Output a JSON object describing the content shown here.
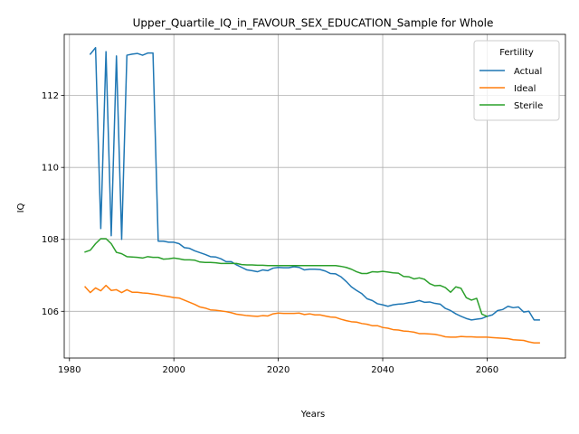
{
  "chart_data": {
    "type": "line",
    "title": "Upper_Quartile_IQ_in_FAVOUR_SEX_EDUCATION_Sample for Whole",
    "xlabel": "Years",
    "ylabel": "IQ",
    "xlim": [
      1979,
      2075
    ],
    "ylim": [
      104.7,
      113.7
    ],
    "xticks": [
      1980,
      2000,
      2020,
      2040,
      2060
    ],
    "yticks": [
      106,
      108,
      110,
      112
    ],
    "grid": true,
    "legend": {
      "title": "Fertility",
      "placement": "top-right"
    },
    "series": [
      {
        "name": "Actual",
        "color": "#1f77b4",
        "points": [
          [
            1984,
            113.15
          ],
          [
            1985,
            113.33
          ],
          [
            1986,
            108.3
          ],
          [
            1987,
            113.22
          ],
          [
            1988,
            108.1
          ],
          [
            1989,
            113.1
          ],
          [
            1990,
            108.0
          ],
          [
            1991,
            113.12
          ],
          [
            1992,
            113.15
          ],
          [
            1993,
            113.17
          ],
          [
            1994,
            113.12
          ],
          [
            1995,
            113.18
          ],
          [
            1996,
            113.18
          ],
          [
            1997,
            107.95
          ],
          [
            1998,
            107.95
          ],
          [
            1999,
            107.92
          ],
          [
            2000,
            107.92
          ],
          [
            2001,
            107.88
          ],
          [
            2002,
            107.77
          ],
          [
            2003,
            107.75
          ],
          [
            2004,
            107.68
          ],
          [
            2005,
            107.63
          ],
          [
            2006,
            107.58
          ],
          [
            2007,
            107.52
          ],
          [
            2008,
            107.51
          ],
          [
            2009,
            107.46
          ],
          [
            2010,
            107.38
          ],
          [
            2011,
            107.38
          ],
          [
            2012,
            107.29
          ],
          [
            2013,
            107.22
          ],
          [
            2014,
            107.15
          ],
          [
            2015,
            107.13
          ],
          [
            2016,
            107.1
          ],
          [
            2017,
            107.15
          ],
          [
            2018,
            107.13
          ],
          [
            2019,
            107.2
          ],
          [
            2020,
            107.22
          ],
          [
            2021,
            107.21
          ],
          [
            2022,
            107.21
          ],
          [
            2023,
            107.24
          ],
          [
            2024,
            107.22
          ],
          [
            2025,
            107.15
          ],
          [
            2026,
            107.17
          ],
          [
            2027,
            107.17
          ],
          [
            2028,
            107.16
          ],
          [
            2029,
            107.12
          ],
          [
            2030,
            107.05
          ],
          [
            2031,
            107.04
          ],
          [
            2032,
            106.96
          ],
          [
            2033,
            106.83
          ],
          [
            2034,
            106.68
          ],
          [
            2035,
            106.58
          ],
          [
            2036,
            106.49
          ],
          [
            2037,
            106.35
          ],
          [
            2038,
            106.3
          ],
          [
            2039,
            106.21
          ],
          [
            2040,
            106.18
          ],
          [
            2041,
            106.14
          ],
          [
            2042,
            106.18
          ],
          [
            2043,
            106.2
          ],
          [
            2044,
            106.21
          ],
          [
            2045,
            106.24
          ],
          [
            2046,
            106.26
          ],
          [
            2047,
            106.3
          ],
          [
            2048,
            106.25
          ],
          [
            2049,
            106.26
          ],
          [
            2050,
            106.22
          ],
          [
            2051,
            106.2
          ],
          [
            2052,
            106.08
          ],
          [
            2053,
            106.02
          ],
          [
            2054,
            105.93
          ],
          [
            2055,
            105.86
          ],
          [
            2056,
            105.8
          ],
          [
            2057,
            105.76
          ],
          [
            2058,
            105.78
          ],
          [
            2059,
            105.8
          ],
          [
            2060,
            105.86
          ],
          [
            2061,
            105.9
          ],
          [
            2062,
            106.02
          ],
          [
            2063,
            106.05
          ],
          [
            2064,
            106.14
          ],
          [
            2065,
            106.1
          ],
          [
            2066,
            106.12
          ],
          [
            2067,
            105.98
          ],
          [
            2068,
            106.0
          ],
          [
            2069,
            105.76
          ],
          [
            2070,
            105.76
          ]
        ]
      },
      {
        "name": "Ideal",
        "color": "#ff7f0e",
        "points": [
          [
            1983,
            106.68
          ],
          [
            1984,
            106.52
          ],
          [
            1985,
            106.65
          ],
          [
            1986,
            106.57
          ],
          [
            1987,
            106.72
          ],
          [
            1988,
            106.58
          ],
          [
            1989,
            106.6
          ],
          [
            1990,
            106.52
          ],
          [
            1991,
            106.6
          ],
          [
            1992,
            106.53
          ],
          [
            1993,
            106.53
          ],
          [
            1994,
            106.51
          ],
          [
            1995,
            106.5
          ],
          [
            1996,
            106.48
          ],
          [
            1997,
            106.46
          ],
          [
            1998,
            106.43
          ],
          [
            1999,
            106.41
          ],
          [
            2000,
            106.38
          ],
          [
            2001,
            106.37
          ],
          [
            2002,
            106.31
          ],
          [
            2003,
            106.25
          ],
          [
            2004,
            106.19
          ],
          [
            2005,
            106.12
          ],
          [
            2006,
            106.09
          ],
          [
            2007,
            106.04
          ],
          [
            2008,
            106.03
          ],
          [
            2009,
            106.01
          ],
          [
            2010,
            105.99
          ],
          [
            2011,
            105.96
          ],
          [
            2012,
            105.92
          ],
          [
            2013,
            105.9
          ],
          [
            2014,
            105.88
          ],
          [
            2015,
            105.87
          ],
          [
            2016,
            105.86
          ],
          [
            2017,
            105.88
          ],
          [
            2018,
            105.87
          ],
          [
            2019,
            105.93
          ],
          [
            2020,
            105.95
          ],
          [
            2021,
            105.94
          ],
          [
            2022,
            105.94
          ],
          [
            2023,
            105.94
          ],
          [
            2024,
            105.95
          ],
          [
            2025,
            105.91
          ],
          [
            2026,
            105.93
          ],
          [
            2027,
            105.9
          ],
          [
            2028,
            105.9
          ],
          [
            2029,
            105.87
          ],
          [
            2030,
            105.84
          ],
          [
            2031,
            105.83
          ],
          [
            2032,
            105.78
          ],
          [
            2033,
            105.74
          ],
          [
            2034,
            105.71
          ],
          [
            2035,
            105.7
          ],
          [
            2036,
            105.66
          ],
          [
            2037,
            105.64
          ],
          [
            2038,
            105.6
          ],
          [
            2039,
            105.6
          ],
          [
            2040,
            105.55
          ],
          [
            2041,
            105.53
          ],
          [
            2042,
            105.49
          ],
          [
            2043,
            105.48
          ],
          [
            2044,
            105.45
          ],
          [
            2045,
            105.44
          ],
          [
            2046,
            105.42
          ],
          [
            2047,
            105.38
          ],
          [
            2048,
            105.38
          ],
          [
            2049,
            105.37
          ],
          [
            2050,
            105.36
          ],
          [
            2051,
            105.33
          ],
          [
            2052,
            105.29
          ],
          [
            2053,
            105.28
          ],
          [
            2054,
            105.28
          ],
          [
            2055,
            105.3
          ],
          [
            2056,
            105.29
          ],
          [
            2057,
            105.29
          ],
          [
            2058,
            105.28
          ],
          [
            2059,
            105.28
          ],
          [
            2060,
            105.28
          ],
          [
            2061,
            105.27
          ],
          [
            2062,
            105.26
          ],
          [
            2063,
            105.25
          ],
          [
            2064,
            105.24
          ],
          [
            2065,
            105.21
          ],
          [
            2066,
            105.2
          ],
          [
            2067,
            105.19
          ],
          [
            2068,
            105.15
          ],
          [
            2069,
            105.12
          ],
          [
            2070,
            105.12
          ]
        ]
      },
      {
        "name": "Sterile",
        "color": "#2ca02c",
        "points": [
          [
            1983,
            107.65
          ],
          [
            1984,
            107.7
          ],
          [
            1985,
            107.88
          ],
          [
            1986,
            108.02
          ],
          [
            1987,
            108.02
          ],
          [
            1988,
            107.88
          ],
          [
            1989,
            107.64
          ],
          [
            1990,
            107.6
          ],
          [
            1991,
            107.52
          ],
          [
            1992,
            107.51
          ],
          [
            1993,
            107.5
          ],
          [
            1994,
            107.48
          ],
          [
            1995,
            107.52
          ],
          [
            1996,
            107.5
          ],
          [
            1997,
            107.5
          ],
          [
            1998,
            107.45
          ],
          [
            1999,
            107.46
          ],
          [
            2000,
            107.48
          ],
          [
            2001,
            107.46
          ],
          [
            2002,
            107.43
          ],
          [
            2003,
            107.43
          ],
          [
            2004,
            107.42
          ],
          [
            2005,
            107.37
          ],
          [
            2006,
            107.36
          ],
          [
            2007,
            107.36
          ],
          [
            2008,
            107.35
          ],
          [
            2009,
            107.33
          ],
          [
            2010,
            107.33
          ],
          [
            2011,
            107.33
          ],
          [
            2012,
            107.33
          ],
          [
            2013,
            107.3
          ],
          [
            2014,
            107.29
          ],
          [
            2015,
            107.29
          ],
          [
            2016,
            107.28
          ],
          [
            2017,
            107.28
          ],
          [
            2018,
            107.27
          ],
          [
            2019,
            107.27
          ],
          [
            2020,
            107.27
          ],
          [
            2021,
            107.27
          ],
          [
            2022,
            107.27
          ],
          [
            2023,
            107.27
          ],
          [
            2024,
            107.27
          ],
          [
            2025,
            107.27
          ],
          [
            2026,
            107.27
          ],
          [
            2027,
            107.27
          ],
          [
            2028,
            107.27
          ],
          [
            2029,
            107.27
          ],
          [
            2030,
            107.27
          ],
          [
            2031,
            107.27
          ],
          [
            2032,
            107.25
          ],
          [
            2033,
            107.22
          ],
          [
            2034,
            107.17
          ],
          [
            2035,
            107.1
          ],
          [
            2036,
            107.05
          ],
          [
            2037,
            107.05
          ],
          [
            2038,
            107.1
          ],
          [
            2039,
            107.09
          ],
          [
            2040,
            107.11
          ],
          [
            2041,
            107.09
          ],
          [
            2042,
            107.07
          ],
          [
            2043,
            107.06
          ],
          [
            2044,
            106.97
          ],
          [
            2045,
            106.96
          ],
          [
            2046,
            106.9
          ],
          [
            2047,
            106.93
          ],
          [
            2048,
            106.89
          ],
          [
            2049,
            106.77
          ],
          [
            2050,
            106.71
          ],
          [
            2051,
            106.72
          ],
          [
            2052,
            106.66
          ],
          [
            2053,
            106.53
          ],
          [
            2054,
            106.68
          ],
          [
            2055,
            106.64
          ],
          [
            2056,
            106.38
          ],
          [
            2057,
            106.31
          ],
          [
            2058,
            106.36
          ],
          [
            2059,
            105.92
          ],
          [
            2060,
            105.86
          ]
        ]
      }
    ]
  }
}
